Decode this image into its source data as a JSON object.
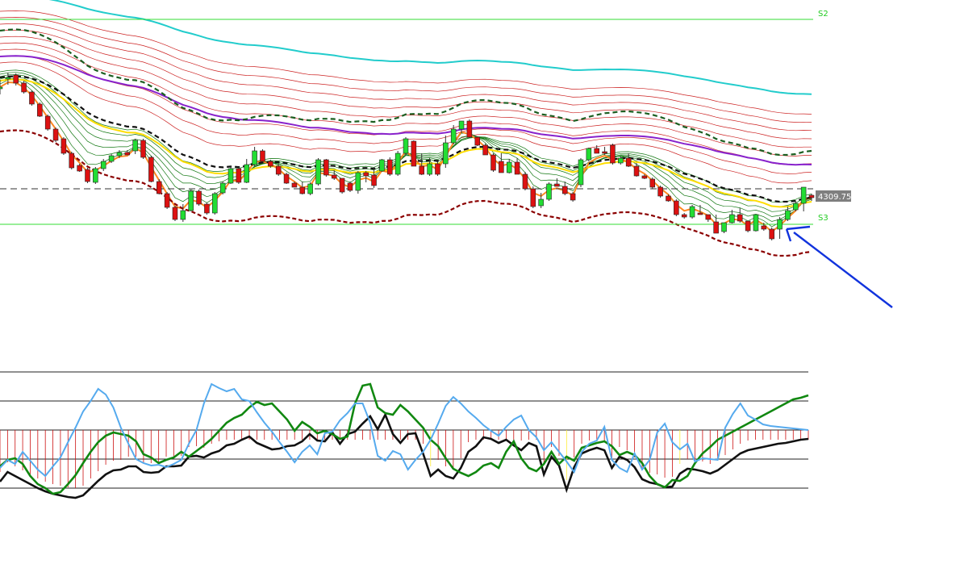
{
  "chart_data": {
    "type": "line",
    "title": "",
    "levels": [
      {
        "label": "S2",
        "color": "#22cc22"
      },
      {
        "label": "S3",
        "color": "#22cc22"
      }
    ],
    "current_price": "4309.75",
    "price_series": {
      "candle_colors": {
        "up": "#22dd33",
        "down": "#dd1111"
      },
      "candles": [
        [
          110,
          108,
          117,
          99
        ],
        [
          97,
          96,
          105,
          90
        ],
        [
          93,
          103,
          106,
          91
        ],
        [
          103,
          114,
          116,
          100
        ],
        [
          114,
          129,
          131,
          112
        ],
        [
          129,
          144,
          145,
          127
        ],
        [
          144,
          160,
          162,
          142
        ],
        [
          160,
          174,
          176,
          158
        ],
        [
          172,
          190,
          192,
          170
        ],
        [
          190,
          208,
          210,
          188
        ],
        [
          205,
          212,
          213,
          203
        ],
        [
          210,
          225,
          227,
          208
        ],
        [
          226,
          209,
          228,
          207
        ],
        [
          209,
          200,
          212,
          197
        ],
        [
          200,
          193,
          202,
          191
        ],
        [
          193,
          189,
          196,
          186
        ],
        [
          189,
          192,
          192,
          186
        ],
        [
          187,
          174,
          191,
          172
        ],
        [
          174,
          195,
          197,
          172
        ],
        [
          195,
          225,
          226,
          193
        ],
        [
          225,
          240,
          241,
          222
        ],
        [
          240,
          257,
          259,
          238
        ],
        [
          257,
          272,
          274,
          255
        ],
        [
          272,
          261,
          275,
          253
        ],
        [
          261,
          237,
          262,
          235
        ],
        [
          237,
          253,
          255,
          235
        ],
        [
          253,
          264,
          266,
          251
        ],
        [
          264,
          240,
          266,
          238
        ],
        [
          239,
          227,
          241,
          225
        ],
        [
          227,
          209,
          228,
          206
        ],
        [
          209,
          226,
          228,
          207
        ],
        [
          226,
          204,
          227,
          197
        ],
        [
          204,
          187,
          206,
          182
        ],
        [
          187,
          200,
          201,
          185
        ],
        [
          200,
          206,
          208,
          198
        ],
        [
          206,
          216,
          218,
          203
        ],
        [
          216,
          227,
          228,
          214
        ],
        [
          227,
          232,
          232,
          225
        ],
        [
          232,
          240,
          241,
          225
        ],
        [
          240,
          228,
          242,
          226
        ],
        [
          228,
          198,
          230,
          196
        ],
        [
          198,
          217,
          219,
          197
        ],
        [
          217,
          221,
          223,
          211
        ],
        [
          221,
          238,
          240,
          226
        ],
        [
          227,
          236,
          238,
          225
        ],
        [
          236,
          214,
          240,
          212
        ],
        [
          214,
          218,
          226,
          212
        ],
        [
          217,
          230,
          233,
          207
        ],
        [
          212,
          198,
          213,
          197
        ],
        [
          198,
          216,
          218,
          195
        ],
        [
          216,
          190,
          218,
          187
        ],
        [
          190,
          172,
          192,
          170
        ],
        [
          175,
          206,
          206,
          174
        ],
        [
          206,
          216,
          217,
          190
        ],
        [
          216,
          203,
          218,
          196
        ],
        [
          203,
          216,
          218,
          200
        ],
        [
          203,
          177,
          208,
          168
        ],
        [
          177,
          160,
          179,
          155
        ],
        [
          160,
          150,
          165,
          150
        ],
        [
          150,
          170,
          171,
          148
        ],
        [
          170,
          180,
          181,
          177
        ],
        [
          180,
          192,
          192,
          178
        ],
        [
          192,
          211,
          213,
          190
        ],
        [
          200,
          214,
          212,
          190
        ],
        [
          214,
          201,
          215,
          197
        ],
        [
          201,
          216,
          216,
          196
        ],
        [
          216,
          234,
          236,
          213
        ],
        [
          234,
          256,
          258,
          231
        ],
        [
          255,
          247,
          258,
          239
        ],
        [
          247,
          228,
          249,
          226
        ],
        [
          228,
          231,
          231,
          221
        ],
        [
          231,
          240,
          242,
          225
        ],
        [
          240,
          248,
          250,
          238
        ],
        [
          229,
          198,
          232,
          196
        ],
        [
          198,
          184,
          200,
          183
        ],
        [
          184,
          190,
          190,
          180
        ],
        [
          188,
          190,
          192,
          182
        ],
        [
          180,
          202,
          204,
          178
        ],
        [
          202,
          196,
          204,
          194
        ],
        [
          196,
          206,
          207,
          190
        ],
        [
          206,
          218,
          219,
          202
        ],
        [
          218,
          221,
          222,
          216
        ],
        [
          222,
          232,
          234,
          220
        ],
        [
          232,
          243,
          245,
          230
        ],
        [
          243,
          249,
          250,
          241
        ],
        [
          249,
          266,
          268,
          247
        ],
        [
          266,
          269,
          271,
          264
        ],
        [
          269,
          256,
          271,
          254
        ],
        [
          264,
          266,
          266,
          254
        ],
        [
          266,
          272,
          275,
          266
        ],
        [
          275,
          289,
          289,
          266
        ],
        [
          287,
          276,
          289,
          284
        ],
        [
          276,
          266,
          277,
          260
        ],
        [
          266,
          274,
          276,
          258
        ],
        [
          274,
          286,
          288,
          286
        ],
        [
          286,
          266,
          287,
          270
        ],
        [
          280,
          284,
          286,
          276
        ],
        [
          284,
          296,
          298,
          282
        ],
        [
          284,
          272,
          296,
          269
        ],
        [
          272,
          261,
          274,
          256
        ],
        [
          260,
          252,
          262,
          250
        ],
        [
          252,
          232,
          262,
          246
        ],
        [
          242,
          245,
          249,
          240
        ]
      ]
    },
    "oscillator": {
      "histogram_colors": {
        "positive": "#cc1111",
        "neutral": "#ffee33"
      },
      "series": [
        {
          "color": "#111111",
          "values": [
            597,
            585,
            590,
            595,
            600,
            605,
            609,
            612,
            614,
            616,
            617,
            614,
            605,
            596,
            588,
            583,
            582,
            578,
            578,
            585,
            586,
            585,
            578,
            578,
            577,
            566,
            565,
            567,
            562,
            559,
            552,
            550,
            545,
            541,
            549,
            553,
            557,
            556,
            553,
            552,
            547,
            538,
            546,
            547,
            536,
            550,
            538,
            535,
            525,
            516,
            532,
            514,
            538,
            549,
            538,
            537,
            562,
            590,
            582,
            590,
            593,
            580,
            560,
            553,
            542,
            544,
            549,
            545,
            552,
            558,
            549,
            553,
            588,
            566,
            577,
            607,
            579,
            562,
            558,
            555,
            558,
            580,
            566,
            570,
            579,
            594,
            598,
            600,
            604,
            603,
            587,
            581,
            582,
            584,
            587,
            583,
            576,
            569,
            562,
            558,
            556,
            554,
            552,
            550,
            549,
            547,
            545,
            544
          ]
        },
        {
          "color": "#118811",
          "values": [
            578,
            570,
            568,
            575,
            590,
            600,
            605,
            612,
            610,
            600,
            589,
            574,
            560,
            548,
            540,
            536,
            538,
            540,
            547,
            563,
            567,
            574,
            570,
            567,
            560,
            566,
            559,
            552,
            544,
            534,
            524,
            518,
            514,
            505,
            498,
            502,
            500,
            510,
            520,
            534,
            523,
            529,
            537,
            534,
            538,
            544,
            541,
            500,
            478,
            476,
            505,
            512,
            514,
            502,
            510,
            520,
            530,
            545,
            553,
            568,
            581,
            586,
            590,
            585,
            577,
            574,
            580,
            560,
            547,
            568,
            580,
            584,
            575,
            560,
            575,
            566,
            571,
            555,
            552,
            549,
            547,
            553,
            564,
            560,
            564,
            574,
            590,
            600,
            604,
            595,
            596,
            590,
            574,
            562,
            554,
            545,
            540,
            535,
            530,
            525,
            520,
            515,
            510,
            505,
            500,
            495,
            493,
            490
          ]
        },
        {
          "color": "#55aaee",
          "values": [
            580,
            570,
            575,
            560,
            571,
            582,
            590,
            578,
            567,
            548,
            530,
            510,
            497,
            482,
            489,
            505,
            530,
            550,
            569,
            574,
            577,
            576,
            579,
            575,
            570,
            550,
            533,
            500,
            476,
            481,
            485,
            482,
            495,
            497,
            511,
            524,
            535,
            548,
            560,
            573,
            560,
            552,
            563,
            537,
            535,
            521,
            512,
            500,
            500,
            524,
            565,
            571,
            559,
            563,
            582,
            570,
            560,
            545,
            525,
            503,
            492,
            500,
            510,
            518,
            527,
            534,
            540,
            529,
            520,
            515,
            533,
            542,
            558,
            548,
            560,
            572,
            585,
            560,
            550,
            546,
            529,
            570,
            580,
            585,
            562,
            582,
            570,
            536,
            525,
            548,
            557,
            550,
            572,
            568,
            569,
            570,
            530,
            513,
            500,
            515,
            520,
            526,
            528,
            529,
            530,
            531,
            532,
            533
          ]
        }
      ]
    },
    "annotation": {
      "type": "arrow",
      "color": "#1133dd"
    }
  }
}
